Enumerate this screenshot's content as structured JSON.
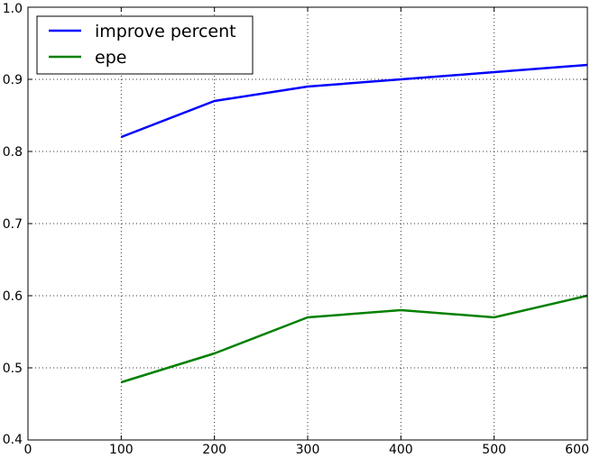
{
  "chart_data": {
    "type": "line",
    "title": "",
    "xlabel": "",
    "ylabel": "",
    "x": [
      100,
      200,
      300,
      400,
      500,
      600
    ],
    "xlim": [
      0,
      600
    ],
    "ylim": [
      0.4,
      1.0
    ],
    "xticks": [
      0,
      100,
      200,
      300,
      400,
      500,
      600
    ],
    "yticks": [
      0.4,
      0.5,
      0.6,
      0.7,
      0.8,
      0.9,
      1.0
    ],
    "xtick_labels": [
      "0",
      "100",
      "200",
      "300",
      "400",
      "500",
      "600"
    ],
    "ytick_labels": [
      "0.4",
      "0.5",
      "0.6",
      "0.7",
      "0.8",
      "0.9",
      "1.0"
    ],
    "grid": true,
    "legend_position": "top-left",
    "series": [
      {
        "name": "improve percent",
        "color": "#0000ff",
        "values": [
          0.82,
          0.87,
          0.89,
          0.9,
          0.91,
          0.92
        ]
      },
      {
        "name": "epe",
        "color": "#008000",
        "values": [
          0.48,
          0.52,
          0.57,
          0.58,
          0.57,
          0.6
        ]
      }
    ]
  }
}
